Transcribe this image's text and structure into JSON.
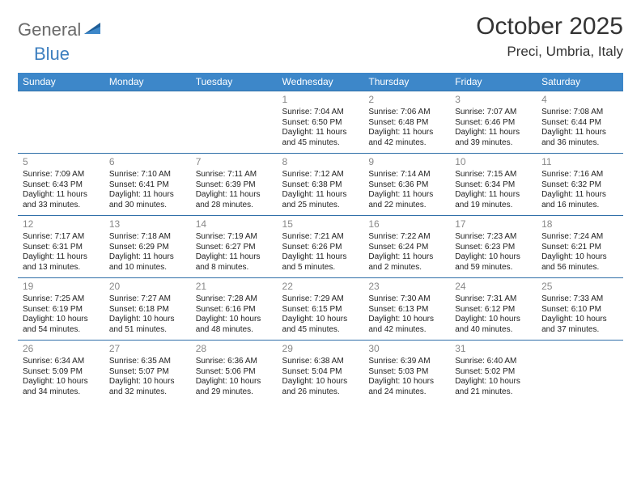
{
  "logo": {
    "part1": "General",
    "part2": "Blue",
    "tri_color_dark": "#1f5e97",
    "tri_color_light": "#3d87c9"
  },
  "title": "October 2025",
  "location": "Preci, Umbria, Italy",
  "style": {
    "header_bg": "#3d87c9",
    "header_fg": "#ffffff",
    "row_border": "#2f6fa8",
    "daynum_color": "#888888",
    "body_fg": "#222222",
    "page_bg": "#ffffff",
    "month_fontsize": 30,
    "loc_fontsize": 17,
    "th_fontsize": 12,
    "td_fontsize": 10,
    "daynum_fontsize": 12
  },
  "weekdays": [
    "Sunday",
    "Monday",
    "Tuesday",
    "Wednesday",
    "Thursday",
    "Friday",
    "Saturday"
  ],
  "weeks": [
    [
      {
        "blank": true
      },
      {
        "blank": true
      },
      {
        "blank": true
      },
      {
        "n": "1",
        "sr": "7:04 AM",
        "ss": "6:50 PM",
        "dl": "11 hours and 45 minutes."
      },
      {
        "n": "2",
        "sr": "7:06 AM",
        "ss": "6:48 PM",
        "dl": "11 hours and 42 minutes."
      },
      {
        "n": "3",
        "sr": "7:07 AM",
        "ss": "6:46 PM",
        "dl": "11 hours and 39 minutes."
      },
      {
        "n": "4",
        "sr": "7:08 AM",
        "ss": "6:44 PM",
        "dl": "11 hours and 36 minutes."
      }
    ],
    [
      {
        "n": "5",
        "sr": "7:09 AM",
        "ss": "6:43 PM",
        "dl": "11 hours and 33 minutes."
      },
      {
        "n": "6",
        "sr": "7:10 AM",
        "ss": "6:41 PM",
        "dl": "11 hours and 30 minutes."
      },
      {
        "n": "7",
        "sr": "7:11 AM",
        "ss": "6:39 PM",
        "dl": "11 hours and 28 minutes."
      },
      {
        "n": "8",
        "sr": "7:12 AM",
        "ss": "6:38 PM",
        "dl": "11 hours and 25 minutes."
      },
      {
        "n": "9",
        "sr": "7:14 AM",
        "ss": "6:36 PM",
        "dl": "11 hours and 22 minutes."
      },
      {
        "n": "10",
        "sr": "7:15 AM",
        "ss": "6:34 PM",
        "dl": "11 hours and 19 minutes."
      },
      {
        "n": "11",
        "sr": "7:16 AM",
        "ss": "6:32 PM",
        "dl": "11 hours and 16 minutes."
      }
    ],
    [
      {
        "n": "12",
        "sr": "7:17 AM",
        "ss": "6:31 PM",
        "dl": "11 hours and 13 minutes."
      },
      {
        "n": "13",
        "sr": "7:18 AM",
        "ss": "6:29 PM",
        "dl": "11 hours and 10 minutes."
      },
      {
        "n": "14",
        "sr": "7:19 AM",
        "ss": "6:27 PM",
        "dl": "11 hours and 8 minutes."
      },
      {
        "n": "15",
        "sr": "7:21 AM",
        "ss": "6:26 PM",
        "dl": "11 hours and 5 minutes."
      },
      {
        "n": "16",
        "sr": "7:22 AM",
        "ss": "6:24 PM",
        "dl": "11 hours and 2 minutes."
      },
      {
        "n": "17",
        "sr": "7:23 AM",
        "ss": "6:23 PM",
        "dl": "10 hours and 59 minutes."
      },
      {
        "n": "18",
        "sr": "7:24 AM",
        "ss": "6:21 PM",
        "dl": "10 hours and 56 minutes."
      }
    ],
    [
      {
        "n": "19",
        "sr": "7:25 AM",
        "ss": "6:19 PM",
        "dl": "10 hours and 54 minutes."
      },
      {
        "n": "20",
        "sr": "7:27 AM",
        "ss": "6:18 PM",
        "dl": "10 hours and 51 minutes."
      },
      {
        "n": "21",
        "sr": "7:28 AM",
        "ss": "6:16 PM",
        "dl": "10 hours and 48 minutes."
      },
      {
        "n": "22",
        "sr": "7:29 AM",
        "ss": "6:15 PM",
        "dl": "10 hours and 45 minutes."
      },
      {
        "n": "23",
        "sr": "7:30 AM",
        "ss": "6:13 PM",
        "dl": "10 hours and 42 minutes."
      },
      {
        "n": "24",
        "sr": "7:31 AM",
        "ss": "6:12 PM",
        "dl": "10 hours and 40 minutes."
      },
      {
        "n": "25",
        "sr": "7:33 AM",
        "ss": "6:10 PM",
        "dl": "10 hours and 37 minutes."
      }
    ],
    [
      {
        "n": "26",
        "sr": "6:34 AM",
        "ss": "5:09 PM",
        "dl": "10 hours and 34 minutes."
      },
      {
        "n": "27",
        "sr": "6:35 AM",
        "ss": "5:07 PM",
        "dl": "10 hours and 32 minutes."
      },
      {
        "n": "28",
        "sr": "6:36 AM",
        "ss": "5:06 PM",
        "dl": "10 hours and 29 minutes."
      },
      {
        "n": "29",
        "sr": "6:38 AM",
        "ss": "5:04 PM",
        "dl": "10 hours and 26 minutes."
      },
      {
        "n": "30",
        "sr": "6:39 AM",
        "ss": "5:03 PM",
        "dl": "10 hours and 24 minutes."
      },
      {
        "n": "31",
        "sr": "6:40 AM",
        "ss": "5:02 PM",
        "dl": "10 hours and 21 minutes."
      },
      {
        "blank": true
      }
    ]
  ],
  "labels": {
    "sunrise": "Sunrise:",
    "sunset": "Sunset:",
    "daylight": "Daylight:"
  }
}
